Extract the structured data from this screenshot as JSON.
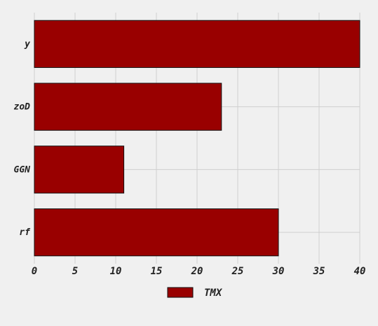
{
  "chart_data": {
    "type": "bar",
    "orientation": "horizontal",
    "categories": [
      "y",
      "zoD",
      "GGN",
      "rf"
    ],
    "series": [
      {
        "name": "TMX",
        "values": [
          40,
          23,
          11,
          30
        ]
      }
    ],
    "xlim": [
      0,
      40
    ],
    "x_ticks": [
      0,
      5,
      10,
      15,
      20,
      25,
      30,
      35,
      40
    ],
    "grid": true,
    "legend_position": "bottom-center",
    "colors": {
      "background": "#f0f0f0",
      "bar": "#990000",
      "bar_edge": "#111111",
      "grid": "#cfcfcf",
      "text": "#222222"
    }
  }
}
